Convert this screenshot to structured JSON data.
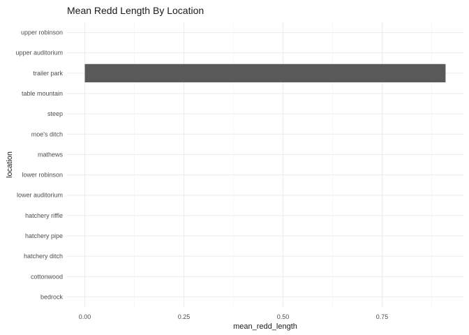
{
  "chart_data": {
    "type": "bar",
    "orientation": "horizontal",
    "title": "Mean Redd Length By Location",
    "xlabel": "mean_redd_length",
    "ylabel": "location",
    "categories": [
      "bedrock",
      "cottonwood",
      "hatchery ditch",
      "hatchery pipe",
      "hatchery riffle",
      "lower auditorium",
      "lower robinson",
      "mathews",
      "moe's ditch",
      "steep",
      "table mountain",
      "trailer park",
      "upper auditorium",
      "upper robinson"
    ],
    "values": [
      0,
      0,
      0,
      0,
      0,
      0,
      0,
      0,
      0,
      0,
      0,
      0.91,
      0,
      0
    ],
    "xlim": [
      -0.045,
      0.955
    ],
    "xticks": [
      0,
      0.25,
      0.5,
      0.75
    ],
    "xtick_labels": [
      "0.00",
      "0.25",
      "0.50",
      "0.75"
    ],
    "bar_color": "#595959",
    "grid": true,
    "legend": "none"
  }
}
